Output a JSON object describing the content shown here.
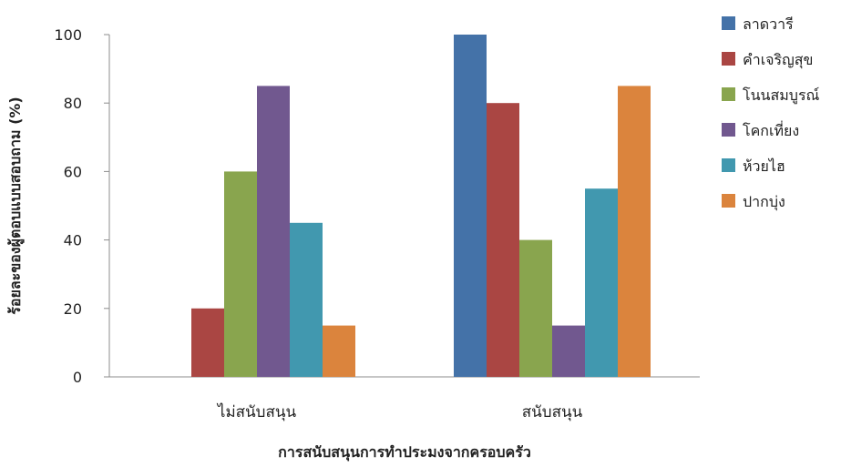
{
  "chart_data": {
    "type": "bar",
    "categories": [
      "ไม่สนับสนุน",
      "สนับสนุน"
    ],
    "series": [
      {
        "name": "ลาดวารี",
        "values": [
          0,
          100
        ],
        "color": "#4472a8"
      },
      {
        "name": "คำเจริญสุข",
        "values": [
          20,
          80
        ],
        "color": "#aa4643"
      },
      {
        "name": "โนนสมบูรณ์",
        "values": [
          60,
          40
        ],
        "color": "#89a54e"
      },
      {
        "name": "โคกเที่ยง",
        "values": [
          85,
          15
        ],
        "color": "#71588f"
      },
      {
        "name": "ห้วยไฮ",
        "values": [
          45,
          55
        ],
        "color": "#4198af"
      },
      {
        "name": "ปากบุ่ง",
        "values": [
          15,
          85
        ],
        "color": "#db843d"
      }
    ],
    "xlabel": "การสนับสนุนการทำประมงจากครอบครัว",
    "ylabel": "ร้อยละของผู้ตอบแบบสอบถาม (%)",
    "ylim": [
      0,
      100
    ],
    "yticks": [
      0,
      20,
      40,
      60,
      80,
      100
    ],
    "grid": false,
    "legend_position": "right"
  }
}
